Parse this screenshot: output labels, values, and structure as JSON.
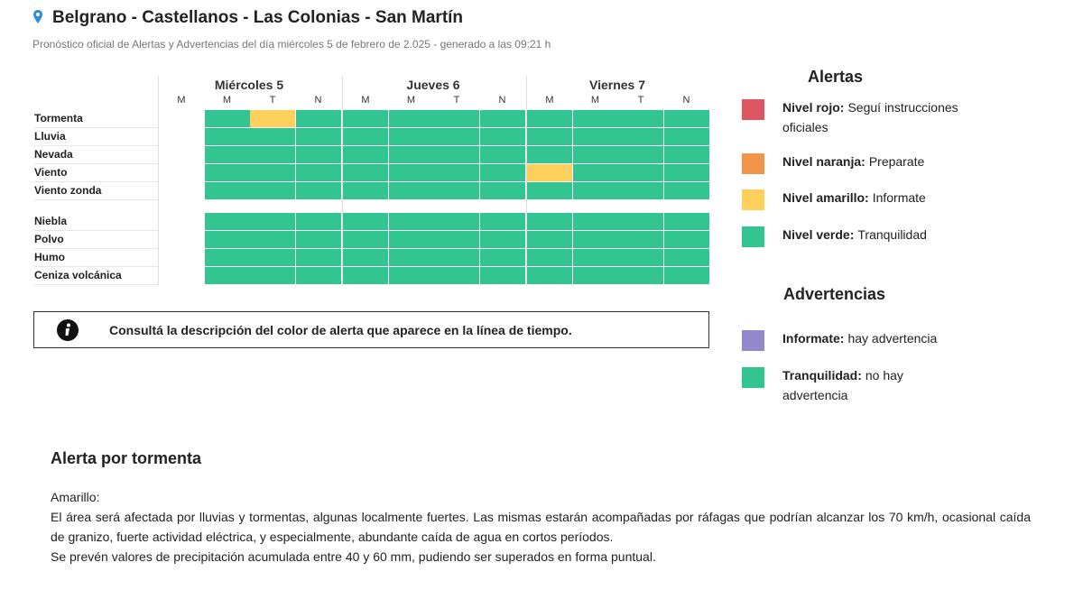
{
  "header": {
    "title": "Belgrano - Castellanos - Las Colonias - San Martín",
    "subtitle": "Pronóstico oficial de Alertas y Advertencias del día miércoles 5 de febrero de 2.025 - generado a las 09:21 h"
  },
  "grid": {
    "days": [
      {
        "name": "Miércoles 5",
        "periods": [
          "M",
          "M",
          "T",
          "N"
        ]
      },
      {
        "name": "Jueves 6",
        "periods": [
          "M",
          "M",
          "T",
          "N"
        ]
      },
      {
        "name": "Viernes 7",
        "periods": [
          "M",
          "M",
          "T",
          "N"
        ]
      }
    ],
    "groups": [
      [
        {
          "label": "Tormenta",
          "cells": [
            null,
            "#33c591",
            "#fdd05b",
            "#33c591",
            "#33c591",
            "#33c591",
            "#33c591",
            "#33c591",
            "#33c591",
            "#33c591",
            "#33c591",
            "#33c591"
          ]
        },
        {
          "label": "Lluvia",
          "cells": [
            null,
            "#33c591",
            "#33c591",
            "#33c591",
            "#33c591",
            "#33c591",
            "#33c591",
            "#33c591",
            "#33c591",
            "#33c591",
            "#33c591",
            "#33c591"
          ]
        },
        {
          "label": "Nevada",
          "cells": [
            null,
            "#33c591",
            "#33c591",
            "#33c591",
            "#33c591",
            "#33c591",
            "#33c591",
            "#33c591",
            "#33c591",
            "#33c591",
            "#33c591",
            "#33c591"
          ]
        },
        {
          "label": "Viento",
          "cells": [
            null,
            "#33c591",
            "#33c591",
            "#33c591",
            "#33c591",
            "#33c591",
            "#33c591",
            "#33c591",
            "#fdd05b",
            "#33c591",
            "#33c591",
            "#33c591"
          ]
        },
        {
          "label": "Viento zonda",
          "cells": [
            null,
            "#33c591",
            "#33c591",
            "#33c591",
            "#33c591",
            "#33c591",
            "#33c591",
            "#33c591",
            "#33c591",
            "#33c591",
            "#33c591",
            "#33c591"
          ]
        }
      ],
      [
        {
          "label": "Niebla",
          "cells": [
            null,
            "#33c591",
            "#33c591",
            "#33c591",
            "#33c591",
            "#33c591",
            "#33c591",
            "#33c591",
            "#33c591",
            "#33c591",
            "#33c591",
            "#33c591"
          ]
        },
        {
          "label": "Polvo",
          "cells": [
            null,
            "#33c591",
            "#33c591",
            "#33c591",
            "#33c591",
            "#33c591",
            "#33c591",
            "#33c591",
            "#33c591",
            "#33c591",
            "#33c591",
            "#33c591"
          ]
        },
        {
          "label": "Humo",
          "cells": [
            null,
            "#33c591",
            "#33c591",
            "#33c591",
            "#33c591",
            "#33c591",
            "#33c591",
            "#33c591",
            "#33c591",
            "#33c591",
            "#33c591",
            "#33c591"
          ]
        },
        {
          "label": "Ceniza volcánica",
          "cells": [
            null,
            "#33c591",
            "#33c591",
            "#33c591",
            "#33c591",
            "#33c591",
            "#33c591",
            "#33c591",
            "#33c591",
            "#33c591",
            "#33c591",
            "#33c591"
          ]
        }
      ]
    ]
  },
  "info": "Consultá la descripción del color de alerta que aparece en la línea de tiempo.",
  "legend": {
    "alerts": {
      "title": "Alertas",
      "items": [
        {
          "strong": "Nivel rojo:",
          "text": "Seguí instrucciones oficiales",
          "color": "#dc5762"
        },
        {
          "strong": "Nivel naranja:",
          "text": "Preparate",
          "color": "#f0954a"
        },
        {
          "strong": "Nivel amarillo:",
          "text": "Informate",
          "color": "#fdd05b"
        },
        {
          "strong": "Nivel verde:",
          "text": "Tranquilidad",
          "color": "#33c591"
        }
      ]
    },
    "warnings": {
      "title": "Advertencias",
      "items": [
        {
          "strong": "Informate:",
          "text": "hay advertencia",
          "color": "#9388cc"
        },
        {
          "strong": "Tranquilidad:",
          "text": "no hay advertencia",
          "color": "#33c591"
        }
      ]
    }
  },
  "detail": {
    "title": "Alerta por tormenta",
    "paragraphs": [
      "Amarillo:",
      "El área será afectada por lluvias y tormentas, algunas localmente fuertes. Las mismas estarán acompañadas por ráfagas que podrían alcanzar los 70 km/h, ocasional caída de granizo, fuerte actividad eléctrica, y especialmente, abundante caída de agua en cortos períodos.",
      "Se prevén valores de precipitación acumulada entre 40 y 60 mm, pudiendo ser superados en forma puntual."
    ]
  }
}
